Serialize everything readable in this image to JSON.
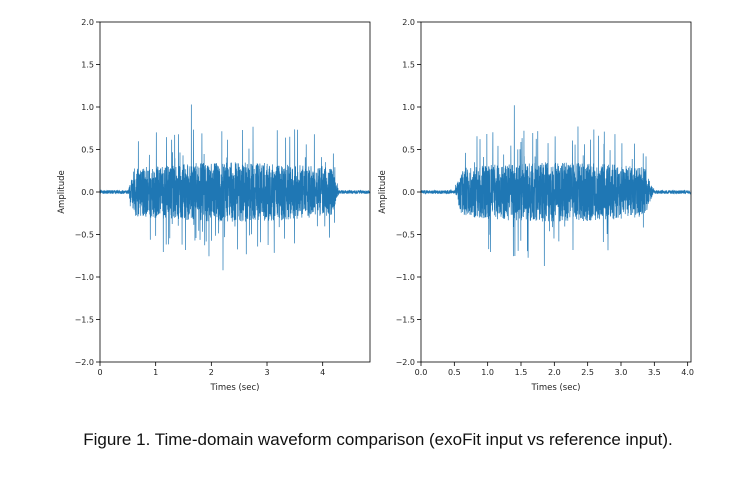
{
  "caption": "Figure 1. Time-domain waveform comparison (exoFit input vs reference input).",
  "colors": {
    "series": "#1f77b4",
    "axes": "#000000"
  },
  "chart_data": [
    {
      "type": "line",
      "title": "",
      "xlabel": "Times (sec)",
      "ylabel": "Amplitude",
      "xlim": [
        0,
        4.85
      ],
      "ylim": [
        -2.0,
        2.0
      ],
      "xticks": [
        0,
        1,
        2,
        3,
        4
      ],
      "xtick_labels": [
        "0",
        "1",
        "2",
        "3",
        "4"
      ],
      "yticks": [
        -2.0,
        -1.5,
        -1.0,
        -0.5,
        0.0,
        0.5,
        1.0,
        1.5,
        2.0
      ],
      "ytick_labels": [
        "−2.0",
        "−1.5",
        "−1.0",
        "−0.5",
        "0.0",
        "0.5",
        "1.0",
        "1.5",
        "2.0"
      ],
      "grid": false,
      "series": [
        {
          "color": "#1f77b4",
          "waveform": {
            "duration": 4.85,
            "active_start": 0.5,
            "active_end": 4.3,
            "typical_amplitude": 0.25,
            "peak_max": 1.03,
            "peak_min": -0.92,
            "noise_floor": 0.015
          }
        }
      ]
    },
    {
      "type": "line",
      "title": "",
      "xlabel": "Times (sec)",
      "ylabel": "Amplitude",
      "xlim": [
        0,
        4.05
      ],
      "ylim": [
        -2.0,
        2.0
      ],
      "xticks": [
        0.0,
        0.5,
        1.0,
        1.5,
        2.0,
        2.5,
        3.0,
        3.5,
        4.0
      ],
      "xtick_labels": [
        "0.0",
        "0.5",
        "1.0",
        "1.5",
        "2.0",
        "2.5",
        "3.0",
        "3.5",
        "4.0"
      ],
      "yticks": [
        -2.0,
        -1.5,
        -1.0,
        -0.5,
        0.0,
        0.5,
        1.0,
        1.5,
        2.0
      ],
      "ytick_labels": [
        "−2.0",
        "−1.5",
        "−1.0",
        "−0.5",
        "0.0",
        "0.5",
        "1.0",
        "1.5",
        "2.0"
      ],
      "grid": false,
      "series": [
        {
          "color": "#1f77b4",
          "waveform": {
            "duration": 4.05,
            "active_start": 0.5,
            "active_end": 3.5,
            "typical_amplitude": 0.25,
            "peak_max": 1.02,
            "peak_min": -0.87,
            "noise_floor": 0.015
          }
        }
      ]
    }
  ]
}
